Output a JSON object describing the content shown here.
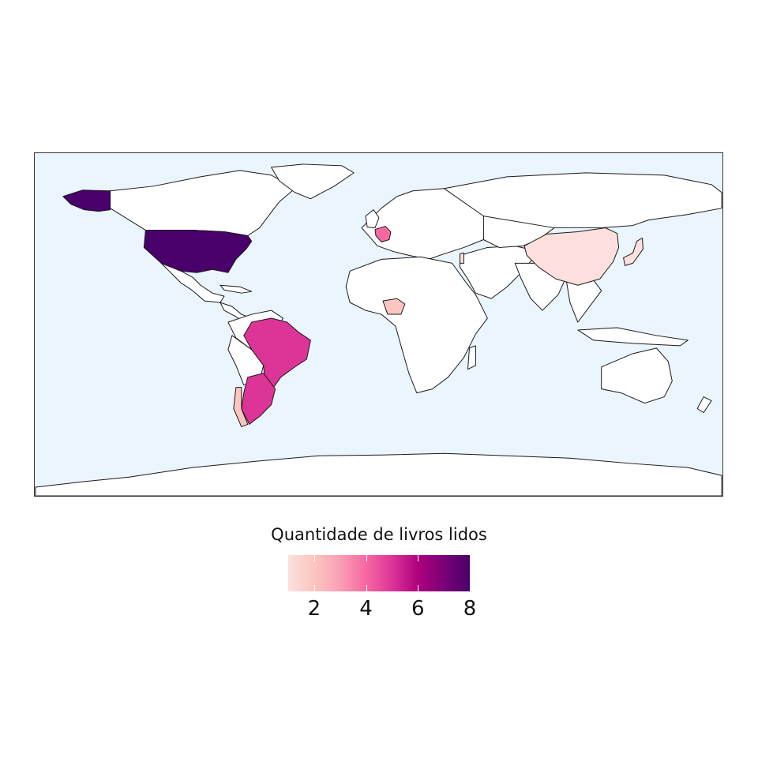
{
  "chart_data": {
    "type": "choropleth",
    "title": "",
    "legend_title": "Quantidade de livros lidos",
    "legend_position": "bottom",
    "value_range": [
      1,
      8
    ],
    "legend_ticks": [
      "2",
      "4",
      "6",
      "8"
    ],
    "legend_tick_values": [
      2,
      4,
      6,
      8
    ],
    "color_scale": [
      "#fde0dd",
      "#fcc5c0",
      "#fa9fb5",
      "#f768a1",
      "#dd3497",
      "#ae017e",
      "#7a0177",
      "#49006a"
    ],
    "colors": {
      "ocean": "#eaf5fe",
      "no_data": "#ffffff",
      "border": "#1a1a1a"
    },
    "regions": [
      {
        "name": "United States",
        "value": 8
      },
      {
        "name": "Brazil",
        "value": 5
      },
      {
        "name": "Argentina",
        "value": 5
      },
      {
        "name": "France",
        "value": 4
      },
      {
        "name": "Nigeria",
        "value": 2
      },
      {
        "name": "Chile",
        "value": 2
      },
      {
        "name": "Israel",
        "value": 1
      },
      {
        "name": "China",
        "value": 1
      },
      {
        "name": "Japan",
        "value": 1
      }
    ]
  }
}
